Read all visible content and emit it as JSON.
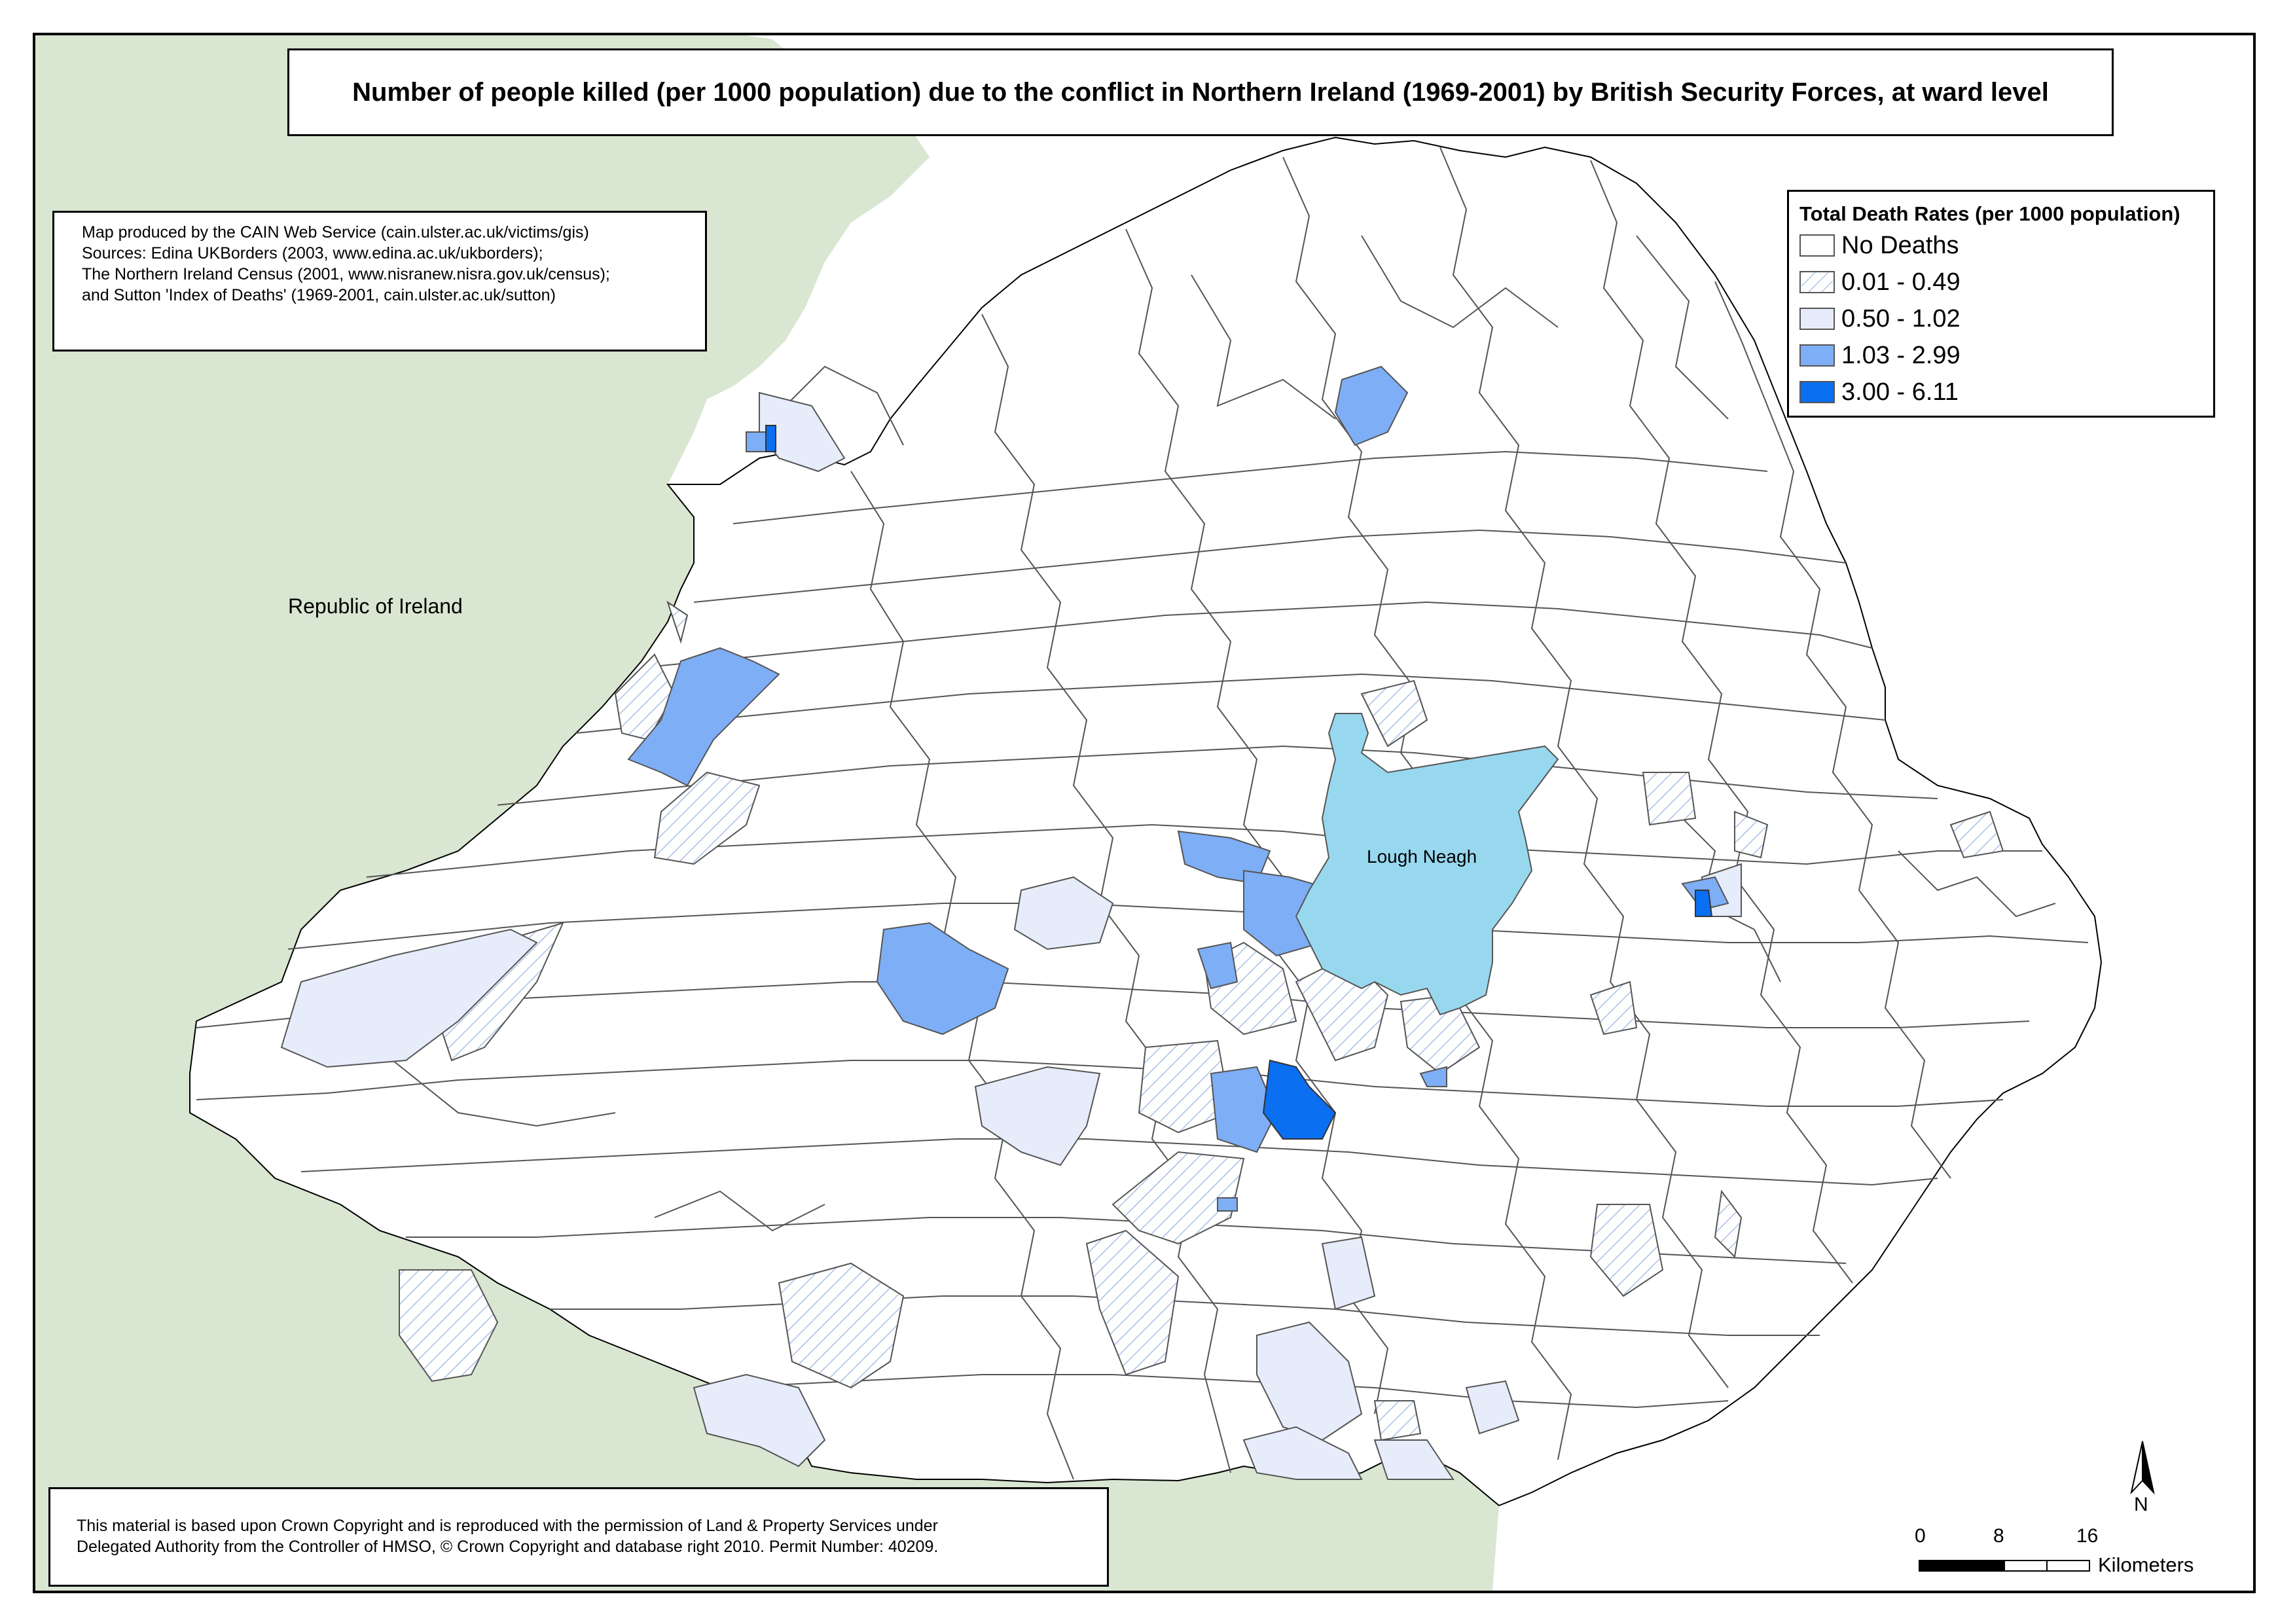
{
  "title": "Number of people killed (per 1000 population) due to the conflict in Northern Ireland (1969-2001) by British Security Forces, at ward level",
  "credits": [
    "Map produced by the CAIN Web Service (cain.ulster.ac.uk/victims/gis)",
    "Sources: Edina UKBorders (2003, www.edina.ac.uk/ukborders);",
    "The Northern Ireland Census (2001, www.nisranew.nisra.gov.uk/census);",
    "and Sutton 'Index of Deaths' (1969-2001, cain.ulster.ac.uk/sutton)"
  ],
  "legend": {
    "title": "Total Death Rates (per 1000 population)",
    "items": [
      {
        "label": "No Deaths",
        "color": "#ffffff",
        "pattern": "solid"
      },
      {
        "label": "0.01 - 0.49",
        "color": "#c7d3f0",
        "pattern": "hatch"
      },
      {
        "label": "0.50 - 1.02",
        "color": "#e6ecfa",
        "pattern": "solid"
      },
      {
        "label": "1.03 - 2.99",
        "color": "#7eaef5",
        "pattern": "solid"
      },
      {
        "label": "3.00 - 6.11",
        "color": "#0a6ff0",
        "pattern": "solid"
      }
    ]
  },
  "labels": {
    "republic": "Republic of Ireland",
    "lough": "Lough Neagh"
  },
  "copyright": [
    "This material is based upon Crown Copyright and is reproduced with the permission of Land & Property Services under",
    "Delegated Authority from the Controller of HMSO, © Crown Copyright and database right 2010. Permit Number: 40209."
  ],
  "north_arrow": "N",
  "scale_bar": {
    "ticks": [
      "0",
      "8",
      "16"
    ],
    "unit": "Kilometers"
  },
  "colors": {
    "land_ireland": "#d9e6d1",
    "sea": "#ffffff",
    "lough": "#98d8ef",
    "ward_border": "#555555"
  }
}
